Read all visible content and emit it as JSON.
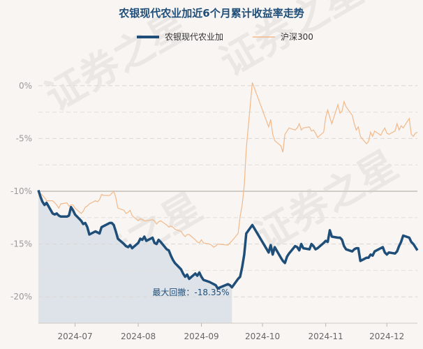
{
  "chart_data": {
    "type": "line",
    "title": "农银现代农业加近6个月累计收益率走势",
    "watermark": "证券之星",
    "ylim": [
      -22.5,
      2.5
    ],
    "yticks": [
      {
        "value": 0,
        "label": "0%"
      },
      {
        "value": -5,
        "label": "-5%"
      },
      {
        "value": -10,
        "label": "-10%"
      },
      {
        "value": -15,
        "label": "-15%"
      },
      {
        "value": -20,
        "label": "-20%"
      }
    ],
    "xlim": [
      "2024-06-17",
      "2024-12-20"
    ],
    "xticks": [
      {
        "date": "2024-07-05",
        "label": "2024-07"
      },
      {
        "date": "2024-08-05",
        "label": "2024-08"
      },
      {
        "date": "2024-09-05",
        "label": "2024-09"
      },
      {
        "date": "2024-10-05",
        "label": "2024-10"
      },
      {
        "date": "2024-11-05",
        "label": "2024-11"
      },
      {
        "date": "2024-12-05",
        "label": "2024-12"
      }
    ],
    "grid": true,
    "legend_position": "top-center",
    "annotation": {
      "text": "最大回撤：-18.35%",
      "x": "2024-09-18",
      "y": -19.6
    },
    "drawdown_region": {
      "start": "2024-06-17",
      "end": "2024-09-20",
      "color": "#dde3e8"
    },
    "colors": {
      "fund": "#1f4e79",
      "index": "#f2b98a",
      "background": "#f8f5f2"
    },
    "series": [
      {
        "name": "农银现代农业加",
        "x": [
          "2024-06-17",
          "2024-06-18",
          "2024-06-19",
          "2024-06-20",
          "2024-06-21",
          "2024-06-24",
          "2024-06-25",
          "2024-06-26",
          "2024-06-27",
          "2024-06-28",
          "2024-07-01",
          "2024-07-02",
          "2024-07-03",
          "2024-07-04",
          "2024-07-05",
          "2024-07-08",
          "2024-07-09",
          "2024-07-10",
          "2024-07-11",
          "2024-07-12",
          "2024-07-15",
          "2024-07-16",
          "2024-07-17",
          "2024-07-18",
          "2024-07-19",
          "2024-07-22",
          "2024-07-23",
          "2024-07-24",
          "2024-07-25",
          "2024-07-26",
          "2024-07-29",
          "2024-07-30",
          "2024-07-31",
          "2024-08-01",
          "2024-08-02",
          "2024-08-05",
          "2024-08-06",
          "2024-08-07",
          "2024-08-08",
          "2024-08-09",
          "2024-08-12",
          "2024-08-13",
          "2024-08-14",
          "2024-08-15",
          "2024-08-16",
          "2024-08-19",
          "2024-08-20",
          "2024-08-21",
          "2024-08-22",
          "2024-08-23",
          "2024-08-26",
          "2024-08-27",
          "2024-08-28",
          "2024-08-29",
          "2024-08-30",
          "2024-09-02",
          "2024-09-03",
          "2024-09-04",
          "2024-09-05",
          "2024-09-06",
          "2024-09-09",
          "2024-09-10",
          "2024-09-11",
          "2024-09-12",
          "2024-09-13",
          "2024-09-18",
          "2024-09-19",
          "2024-09-20",
          "2024-09-23",
          "2024-09-24",
          "2024-09-25",
          "2024-09-26",
          "2024-09-27",
          "2024-09-30",
          "2024-10-08",
          "2024-10-09",
          "2024-10-10",
          "2024-10-11",
          "2024-10-14",
          "2024-10-15",
          "2024-10-16",
          "2024-10-17",
          "2024-10-18",
          "2024-10-21",
          "2024-10-22",
          "2024-10-23",
          "2024-10-24",
          "2024-10-25",
          "2024-10-28",
          "2024-10-29",
          "2024-10-30",
          "2024-10-31",
          "2024-11-01",
          "2024-11-04",
          "2024-11-05",
          "2024-11-06",
          "2024-11-07",
          "2024-11-08",
          "2024-11-11",
          "2024-11-12",
          "2024-11-13",
          "2024-11-14",
          "2024-11-15",
          "2024-11-18",
          "2024-11-19",
          "2024-11-20",
          "2024-11-21",
          "2024-11-22",
          "2024-11-25",
          "2024-11-26",
          "2024-11-27",
          "2024-11-28",
          "2024-11-29",
          "2024-12-02",
          "2024-12-03",
          "2024-12-04",
          "2024-12-05",
          "2024-12-06",
          "2024-12-09",
          "2024-12-10",
          "2024-12-11",
          "2024-12-12",
          "2024-12-13",
          "2024-12-16",
          "2024-12-17",
          "2024-12-18",
          "2024-12-19",
          "2024-12-20"
        ],
        "values": [
          -9.9,
          -10.5,
          -11.0,
          -11.3,
          -11.1,
          -12.1,
          -12.2,
          -12.1,
          -12.3,
          -12.4,
          -12.4,
          -12.3,
          -11.5,
          -11.8,
          -12.2,
          -12.8,
          -13.1,
          -13.0,
          -13.4,
          -14.1,
          -13.8,
          -13.9,
          -14.0,
          -13.4,
          -13.3,
          -13.0,
          -13.0,
          -13.2,
          -13.8,
          -14.5,
          -15.0,
          -15.2,
          -15.3,
          -15.1,
          -15.4,
          -14.9,
          -14.5,
          -14.6,
          -14.3,
          -14.7,
          -14.4,
          -14.9,
          -15.0,
          -14.6,
          -14.8,
          -15.5,
          -15.6,
          -16.1,
          -16.5,
          -16.8,
          -17.4,
          -17.8,
          -18.1,
          -17.9,
          -18.3,
          -17.8,
          -18.0,
          -17.7,
          -18.1,
          -18.4,
          -18.6,
          -18.7,
          -18.8,
          -18.9,
          -19.2,
          -18.8,
          -18.9,
          -19.1,
          -18.3,
          -18.1,
          -17.2,
          -16.0,
          -14.0,
          -13.2,
          -15.8,
          -15.1,
          -16.0,
          -15.3,
          -16.3,
          -16.6,
          -16.8,
          -16.2,
          -15.9,
          -15.2,
          -15.3,
          -15.6,
          -15.0,
          -15.4,
          -15.5,
          -15.0,
          -15.2,
          -15.5,
          -15.4,
          -14.9,
          -14.7,
          -14.8,
          -13.7,
          -14.3,
          -14.4,
          -14.4,
          -14.6,
          -15.2,
          -15.5,
          -15.7,
          -15.5,
          -15.4,
          -15.4,
          -16.6,
          -16.3,
          -16.3,
          -16.0,
          -16.1,
          -15.7,
          -15.4,
          -15.3,
          -15.8,
          -16.0,
          -15.8,
          -15.9,
          -15.7,
          -15.2,
          -14.8,
          -14.2,
          -14.4,
          -14.8,
          -15.0,
          -15.3,
          -15.6
        ]
      },
      {
        "name": "沪深300",
        "x": [
          "2024-06-17",
          "2024-06-18",
          "2024-06-19",
          "2024-06-20",
          "2024-06-21",
          "2024-06-24",
          "2024-06-25",
          "2024-06-26",
          "2024-06-27",
          "2024-06-28",
          "2024-07-01",
          "2024-07-02",
          "2024-07-03",
          "2024-07-04",
          "2024-07-05",
          "2024-07-08",
          "2024-07-09",
          "2024-07-10",
          "2024-07-11",
          "2024-07-12",
          "2024-07-15",
          "2024-07-16",
          "2024-07-17",
          "2024-07-18",
          "2024-07-19",
          "2024-07-22",
          "2024-07-23",
          "2024-07-24",
          "2024-07-25",
          "2024-07-26",
          "2024-07-29",
          "2024-07-30",
          "2024-07-31",
          "2024-08-01",
          "2024-08-02",
          "2024-08-05",
          "2024-08-06",
          "2024-08-07",
          "2024-08-08",
          "2024-08-09",
          "2024-08-12",
          "2024-08-13",
          "2024-08-14",
          "2024-08-15",
          "2024-08-16",
          "2024-08-19",
          "2024-08-20",
          "2024-08-21",
          "2024-08-22",
          "2024-08-23",
          "2024-08-26",
          "2024-08-27",
          "2024-08-28",
          "2024-08-29",
          "2024-08-30",
          "2024-09-02",
          "2024-09-03",
          "2024-09-04",
          "2024-09-05",
          "2024-09-06",
          "2024-09-09",
          "2024-09-10",
          "2024-09-11",
          "2024-09-12",
          "2024-09-13",
          "2024-09-18",
          "2024-09-19",
          "2024-09-20",
          "2024-09-23",
          "2024-09-24",
          "2024-09-25",
          "2024-09-26",
          "2024-09-27",
          "2024-09-30",
          "2024-10-08",
          "2024-10-09",
          "2024-10-10",
          "2024-10-11",
          "2024-10-14",
          "2024-10-15",
          "2024-10-16",
          "2024-10-17",
          "2024-10-18",
          "2024-10-21",
          "2024-10-22",
          "2024-10-23",
          "2024-10-24",
          "2024-10-25",
          "2024-10-28",
          "2024-10-29",
          "2024-10-30",
          "2024-10-31",
          "2024-11-01",
          "2024-11-04",
          "2024-11-05",
          "2024-11-06",
          "2024-11-07",
          "2024-11-08",
          "2024-11-11",
          "2024-11-12",
          "2024-11-13",
          "2024-11-14",
          "2024-11-15",
          "2024-11-18",
          "2024-11-19",
          "2024-11-20",
          "2024-11-21",
          "2024-11-22",
          "2024-11-25",
          "2024-11-26",
          "2024-11-27",
          "2024-11-28",
          "2024-11-29",
          "2024-12-02",
          "2024-12-03",
          "2024-12-04",
          "2024-12-05",
          "2024-12-06",
          "2024-12-09",
          "2024-12-10",
          "2024-12-11",
          "2024-12-12",
          "2024-12-13",
          "2024-12-16",
          "2024-12-17",
          "2024-12-18",
          "2024-12-19",
          "2024-12-20"
        ],
        "values": [
          -9.9,
          -10.2,
          -10.4,
          -10.6,
          -10.9,
          -10.9,
          -11.1,
          -11.3,
          -11.6,
          -11.2,
          -11.1,
          -11.4,
          -11.3,
          -11.3,
          -11.6,
          -12.1,
          -11.9,
          -11.5,
          -11.4,
          -11.2,
          -10.9,
          -11.0,
          -10.8,
          -10.3,
          -10.4,
          -10.4,
          -10.2,
          -10.0,
          -10.6,
          -11.6,
          -11.8,
          -12.1,
          -12.0,
          -11.8,
          -12.3,
          -12.8,
          -12.6,
          -12.7,
          -12.8,
          -12.8,
          -12.7,
          -12.8,
          -13.1,
          -12.9,
          -12.8,
          -13.2,
          -13.4,
          -13.3,
          -13.4,
          -13.6,
          -13.8,
          -14.1,
          -14.3,
          -14.1,
          -14.1,
          -14.6,
          -14.8,
          -14.9,
          -14.6,
          -14.9,
          -15.0,
          -15.1,
          -15.3,
          -15.2,
          -15.0,
          -15.1,
          -14.9,
          -14.7,
          -14.0,
          -12.4,
          -11.3,
          -9.5,
          -6.0,
          0.3,
          -3.9,
          -3.2,
          -4.6,
          -5.2,
          -5.7,
          -6.3,
          -4.6,
          -4.3,
          -4.0,
          -4.2,
          -4.0,
          -3.6,
          -4.2,
          -4.0,
          -3.9,
          -4.3,
          -4.2,
          -4.5,
          -4.9,
          -4.4,
          -3.0,
          -2.3,
          -3.0,
          -3.6,
          -1.8,
          -2.6,
          -2.4,
          -1.5,
          -2.0,
          -2.8,
          -3.6,
          -4.2,
          -3.9,
          -4.8,
          -5.5,
          -5.3,
          -4.4,
          -4.8,
          -4.3,
          -4.7,
          -4.3,
          -4.0,
          -4.5,
          -4.6,
          -4.3,
          -3.6,
          -4.2,
          -3.8,
          -4.0,
          -3.1,
          -4.6,
          -4.8,
          -4.5,
          -4.4
        ]
      }
    ]
  }
}
